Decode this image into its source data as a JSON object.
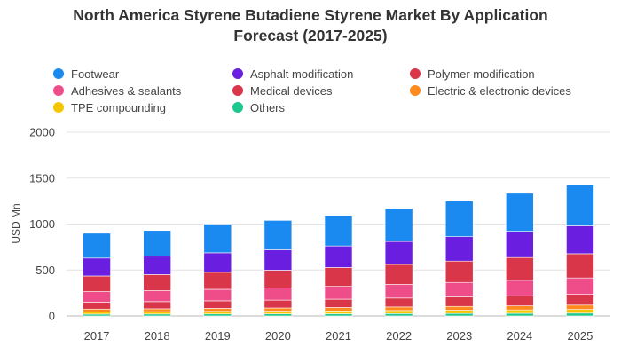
{
  "chart_data": {
    "type": "bar",
    "stacked": true,
    "title_line1": "North America Styrene Butadiene Styrene Market By Application",
    "title_line2": "Forecast (2017-2025)",
    "xlabel": "",
    "ylabel": "USD Mn",
    "ylim": [
      0,
      2000
    ],
    "yticks": [
      0,
      500,
      1000,
      1500,
      2000
    ],
    "grid": true,
    "legend_position": "top",
    "categories": [
      "2017",
      "2018",
      "2019",
      "2020",
      "2021",
      "2022",
      "2023",
      "2024",
      "2025"
    ],
    "series": [
      {
        "name": "Others",
        "color": "#1ec78e",
        "values": [
          20,
          21,
          22,
          23,
          24,
          26,
          27,
          29,
          31
        ]
      },
      {
        "name": "TPE compounding",
        "color": "#f5c500",
        "values": [
          25,
          26,
          28,
          29,
          31,
          33,
          35,
          37,
          40
        ]
      },
      {
        "name": "Electric & electronic devices",
        "color": "#ff8a1e",
        "values": [
          30,
          31,
          33,
          35,
          37,
          39,
          42,
          44,
          47
        ]
      },
      {
        "name": "Medical devices",
        "color": "#d93649",
        "values": [
          75,
          78,
          82,
          86,
          91,
          97,
          103,
          110,
          117
        ]
      },
      {
        "name": "Adhesives & sealants",
        "color": "#ef4d8a",
        "values": [
          115,
          119,
          125,
          131,
          139,
          148,
          158,
          168,
          179
        ]
      },
      {
        "name": "Polymer modification",
        "color": "#d93649",
        "values": [
          170,
          175,
          185,
          194,
          205,
          218,
          232,
          248,
          263
        ]
      },
      {
        "name": "Asphalt modification",
        "color": "#6a1fe0",
        "values": [
          195,
          200,
          212,
          222,
          235,
          250,
          266,
          285,
          304
        ]
      },
      {
        "name": "Footwear",
        "color": "#1a8af0",
        "values": [
          270,
          280,
          313,
          320,
          333,
          359,
          388,
          414,
          445
        ]
      }
    ]
  },
  "legend": [
    {
      "label": "Footwear",
      "color": "#1a8af0"
    },
    {
      "label": "Asphalt modification",
      "color": "#6a1fe0"
    },
    {
      "label": "Polymer modification",
      "color": "#d93649"
    },
    {
      "label": "Adhesives & sealants",
      "color": "#ef4d8a"
    },
    {
      "label": "Medical devices",
      "color": "#d93649"
    },
    {
      "label": "Electric & electronic devices",
      "color": "#ff8a1e"
    },
    {
      "label": "TPE compounding",
      "color": "#f5c500"
    },
    {
      "label": "Others",
      "color": "#1ec78e"
    }
  ]
}
